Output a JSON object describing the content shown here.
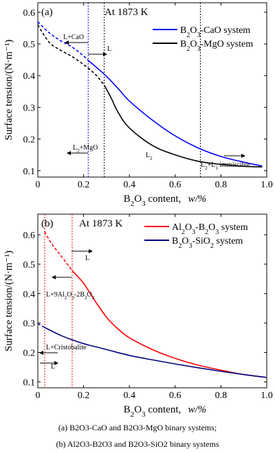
{
  "chart_data": [
    {
      "panel": "(a)",
      "type": "line",
      "annotation_title": "At 1873 K",
      "xlabel": "B2O3 content, w/%",
      "ylabel": "Surface tension/(N·m⁻¹)",
      "xlim": [
        0,
        1.0
      ],
      "ylim": [
        0.08,
        0.63
      ],
      "xticks": [
        "0",
        "0.2",
        "0.4",
        "0.6",
        "0.8",
        "1.0"
      ],
      "yticks": [
        "0.1",
        "0.2",
        "0.3",
        "0.4",
        "0.5",
        "0.6"
      ],
      "ytick_values": [
        0.1,
        0.2,
        0.3,
        0.4,
        0.5,
        0.6
      ],
      "xtick_values": [
        0,
        0.2,
        0.4,
        0.6,
        0.8,
        1.0
      ],
      "legend_position": "top-right",
      "series": [
        {
          "name": "B2O3-CaO system",
          "color": "#0000ff",
          "dashed_until": 0.22,
          "x": [
            0,
            0.05,
            0.1,
            0.15,
            0.2,
            0.22,
            0.25,
            0.3,
            0.35,
            0.4,
            0.5,
            0.6,
            0.7,
            0.8,
            0.9,
            0.98
          ],
          "y": [
            0.57,
            0.535,
            0.51,
            0.49,
            0.462,
            0.448,
            0.43,
            0.398,
            0.36,
            0.32,
            0.26,
            0.21,
            0.172,
            0.145,
            0.127,
            0.115
          ]
        },
        {
          "name": "B2O3-MgO system",
          "color": "#000000",
          "dashed_until": 0.29,
          "x": [
            0,
            0.05,
            0.1,
            0.15,
            0.2,
            0.25,
            0.29,
            0.32,
            0.35,
            0.4,
            0.5,
            0.6,
            0.7,
            0.8,
            0.9,
            0.98
          ],
          "y": [
            0.56,
            0.505,
            0.48,
            0.46,
            0.435,
            0.405,
            0.37,
            0.33,
            0.285,
            0.235,
            0.18,
            0.15,
            0.13,
            0.12,
            0.114,
            0.112
          ]
        }
      ],
      "vlines": [
        {
          "x": 0.22,
          "color": "#0000ff"
        },
        {
          "x": 0.29,
          "color": "#000000"
        },
        {
          "x": 0.71,
          "color": "#000000"
        }
      ],
      "region_labels": [
        "L+CaO",
        "L",
        "L2+MgO",
        "L2",
        "L2+L1 immiscible"
      ]
    },
    {
      "panel": "(b)",
      "type": "line",
      "annotation_title": "At 1873 K",
      "xlabel": "B2O3 content, w/%",
      "ylabel": "Surface tension/(N·m⁻¹)",
      "xlim": [
        0,
        1.0
      ],
      "ylim": [
        0.08,
        0.67
      ],
      "xticks": [
        "0",
        "0.2",
        "0.4",
        "0.6",
        "0.8",
        "1.0"
      ],
      "yticks": [
        "0.1",
        "0.2",
        "0.3",
        "0.4",
        "0.5",
        "0.6"
      ],
      "ytick_values": [
        0.1,
        0.2,
        0.3,
        0.4,
        0.5,
        0.6
      ],
      "xtick_values": [
        0,
        0.2,
        0.4,
        0.6,
        0.8,
        1.0
      ],
      "legend_position": "top-right",
      "series": [
        {
          "name": "Al2O3-B2O3 system",
          "color": "#ff0000",
          "dashed_until": 0.15,
          "x": [
            0.03,
            0.06,
            0.1,
            0.15,
            0.2,
            0.25,
            0.3,
            0.35,
            0.4,
            0.5,
            0.6,
            0.7,
            0.8,
            0.9,
            1.0
          ],
          "y": [
            0.61,
            0.57,
            0.53,
            0.478,
            0.435,
            0.375,
            0.32,
            0.28,
            0.25,
            0.21,
            0.18,
            0.157,
            0.14,
            0.125,
            0.115
          ]
        },
        {
          "name": "B2O3-SiO2 system",
          "color": "#000080",
          "dashed_until": 0.03,
          "x": [
            0,
            0.03,
            0.05,
            0.1,
            0.15,
            0.2,
            0.3,
            0.4,
            0.5,
            0.6,
            0.7,
            0.8,
            0.9,
            1.0
          ],
          "y": [
            0.298,
            0.285,
            0.277,
            0.258,
            0.243,
            0.23,
            0.21,
            0.19,
            0.175,
            0.161,
            0.148,
            0.136,
            0.125,
            0.115
          ]
        }
      ],
      "vlines": [
        {
          "x": 0.03,
          "color": "#ff0000"
        },
        {
          "x": 0.15,
          "color": "#ff0000"
        }
      ],
      "region_labels": [
        "L",
        "L+9Al2O3-2B2O3",
        "L+Cristobalite",
        "L"
      ]
    }
  ],
  "captions": {
    "a": "(a) B2O3-CaO and B2O3-MgO binary systems;",
    "b": "(b) Al2O3-B2O3 and B2O3-SiO2 binary systems"
  }
}
